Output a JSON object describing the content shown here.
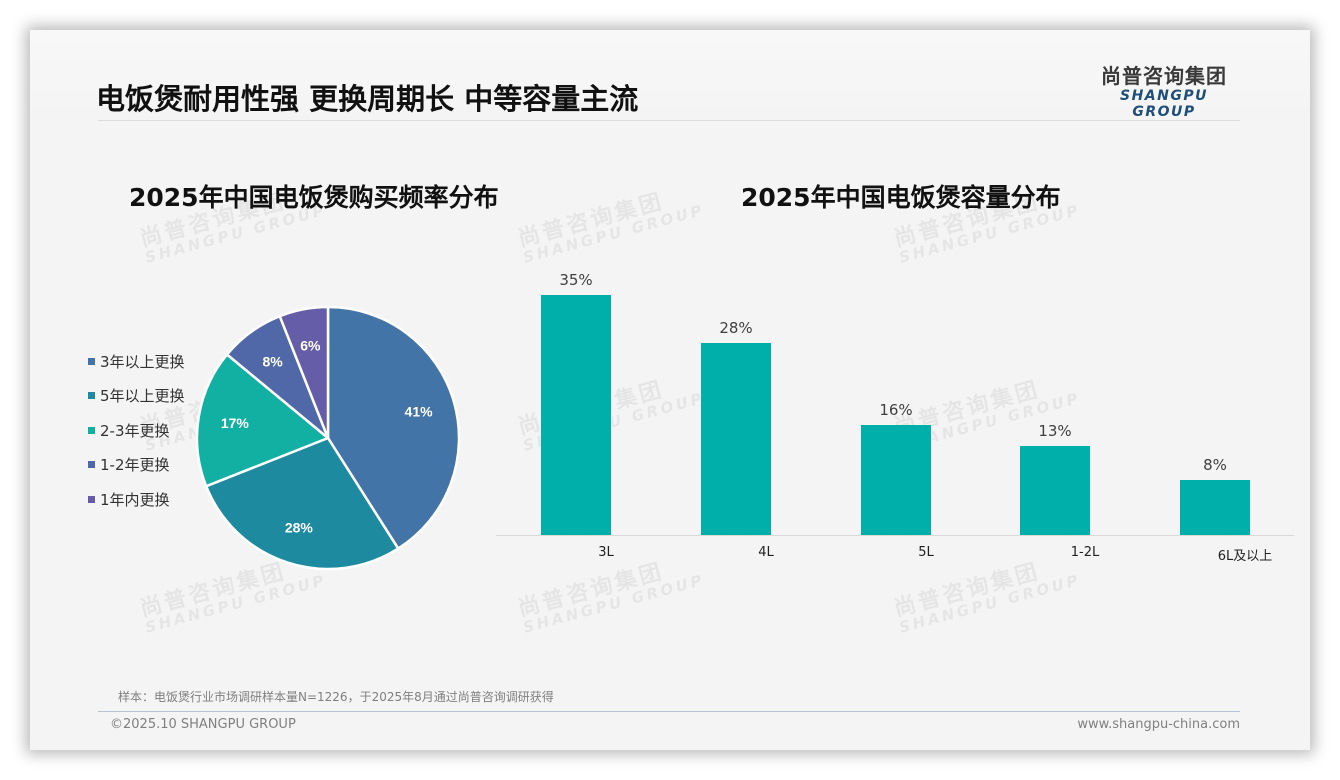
{
  "header": {
    "title": "电饭煲耐用性强 更换周期长 中等容量主流",
    "logo_cn": "尚普咨询集团",
    "logo_en": "SHANGPU GROUP"
  },
  "watermark": {
    "cn": "尚普咨询集团",
    "en": "SHANGPU GROUP"
  },
  "chart_data": [
    {
      "type": "pie",
      "title": "2025年中国电饭煲购买频率分布",
      "categories": [
        "3年以上更换",
        "5年以上更换",
        "2-3年更换",
        "1-2年更换",
        "1年内更换"
      ],
      "values": [
        41,
        28,
        17,
        8,
        6
      ],
      "labels": [
        "41%",
        "28%",
        "17%",
        "8%",
        "6%"
      ],
      "colors": [
        "#4374a8",
        "#1e8aa0",
        "#12afa3",
        "#5068a8",
        "#665da8"
      ],
      "start_angle": "12 o'clock, clockwise",
      "legend_position": "left"
    },
    {
      "type": "bar",
      "title": "2025年中国电饭煲容量分布",
      "categories": [
        "3L",
        "4L",
        "5L",
        "1-2L",
        "6L及以上"
      ],
      "values": [
        35,
        28,
        16,
        13,
        8
      ],
      "labels": [
        "35%",
        "28%",
        "16%",
        "13%",
        "8%"
      ],
      "xlabel": "",
      "ylabel": "",
      "ylim": [
        0,
        35
      ],
      "grid": false,
      "color": "#00afa9"
    }
  ],
  "footer": {
    "note": "样本：电饭煲行业市场调研样本量N=1226，于2025年8月通过尚普咨询调研获得",
    "copyright": "©2025.10 SHANGPU GROUP",
    "website": "www.shangpu-china.com"
  }
}
